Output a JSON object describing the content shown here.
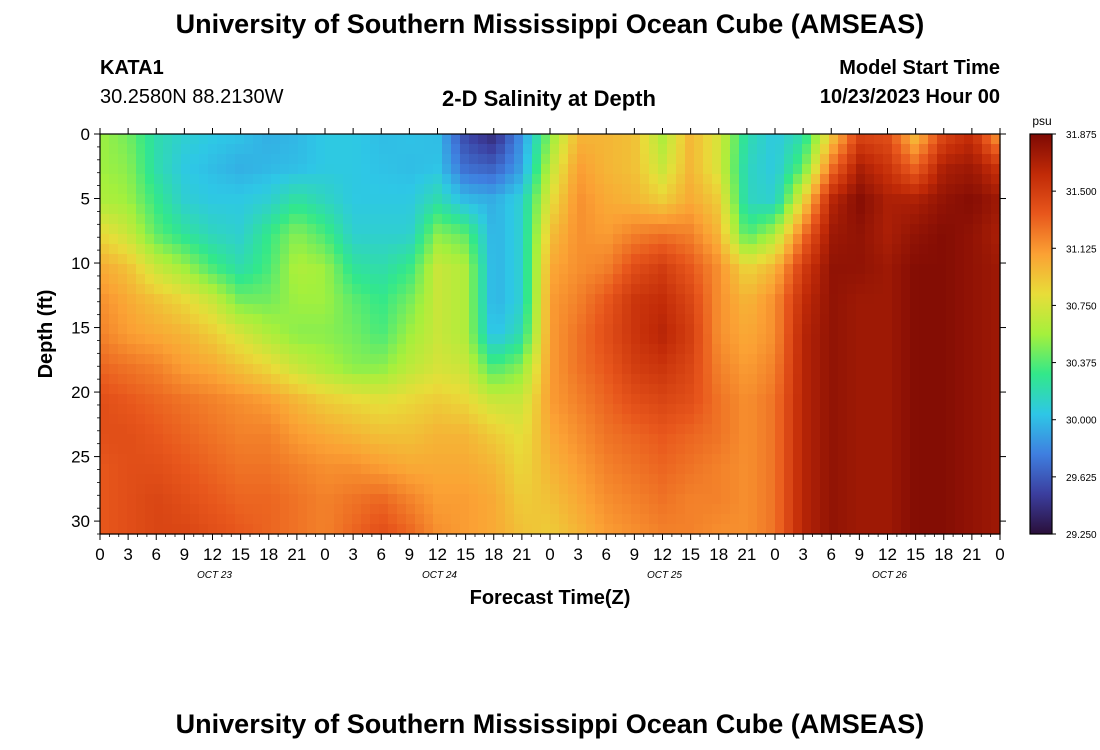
{
  "page": {
    "title": "University of Southern Mississippi Ocean Cube (AMSEAS)",
    "station": "KATA1",
    "coords": "30.2580N  88.2130W",
    "subtitle": "2-D Salinity at Depth",
    "model_label": "Model Start Time",
    "model_time": "10/23/2023 Hour 00",
    "footer_title": "University of Southern Mississippi Ocean Cube (AMSEAS)"
  },
  "chart_data": {
    "type": "heatmap",
    "title": "2-D Salinity at Depth",
    "xlabel": "Forecast Time(Z)",
    "ylabel": "Depth (ft)",
    "x_tick_labels": [
      "0",
      "3",
      "6",
      "9",
      "12",
      "15",
      "18",
      "21",
      "0",
      "3",
      "6",
      "9",
      "12",
      "15",
      "18",
      "21",
      "0",
      "3",
      "6",
      "9",
      "12",
      "15",
      "18",
      "21",
      "0",
      "3",
      "6",
      "9",
      "12",
      "15",
      "18",
      "21",
      "0"
    ],
    "day_labels": [
      "OCT 23",
      "OCT 24",
      "OCT 25",
      "OCT 26"
    ],
    "x_hours": [
      0,
      6,
      12,
      18,
      24,
      30,
      36,
      42,
      48,
      54,
      60,
      66,
      72,
      78,
      84,
      90,
      96
    ],
    "xlim": [
      0,
      96
    ],
    "y_depths_ft": [
      0,
      5,
      10,
      15,
      20,
      25,
      30
    ],
    "y_tick_labels": [
      "0",
      "5",
      "10",
      "15",
      "20",
      "25",
      "30"
    ],
    "ylim": [
      0,
      31
    ],
    "colorbar_unit": "psu",
    "colorbar_ticks": [
      "31.875",
      "31.500",
      "31.125",
      "30.750",
      "30.375",
      "30.000",
      "29.625",
      "29.250"
    ],
    "colorbar_range": [
      29.25,
      31.875
    ],
    "colorbar_colors": [
      "#2a0f3a",
      "#3b3e9e",
      "#3f7fe0",
      "#2ec7e6",
      "#32e88a",
      "#a5f03c",
      "#e8dd39",
      "#fba134",
      "#e8571c",
      "#c12a07",
      "#7e0a04"
    ],
    "salinity_psu": [
      [
        30.55,
        30.45,
        30.2,
        30.1,
        30.05,
        30.02,
        29.95,
        29.98,
        30.05,
        30.05,
        30.0,
        30.02,
        30.0,
        29.55,
        29.4,
        29.85,
        30.5,
        31.0,
        31.0,
        30.95,
        30.6,
        31.0,
        30.75,
        30.2,
        30.05,
        30.2,
        30.9,
        31.45,
        31.4,
        30.95,
        31.45,
        31.6,
        31.05
      ],
      [
        30.55,
        30.5,
        30.2,
        30.05,
        30.0,
        29.95,
        29.98,
        30.0,
        30.05,
        30.05,
        30.02,
        30.0,
        30.02,
        29.7,
        29.65,
        29.9,
        30.65,
        31.1,
        31.0,
        30.95,
        30.7,
        31.0,
        30.75,
        30.15,
        30.05,
        30.4,
        31.25,
        31.7,
        31.55,
        31.3,
        31.7,
        31.75,
        31.55
      ],
      [
        30.6,
        30.55,
        30.3,
        30.1,
        30.05,
        30.05,
        30.1,
        30.25,
        30.15,
        30.05,
        30.05,
        30.05,
        30.2,
        30.0,
        29.95,
        30.1,
        30.8,
        31.15,
        31.05,
        31.0,
        30.9,
        31.05,
        30.9,
        30.15,
        30.1,
        30.85,
        31.65,
        31.85,
        31.7,
        31.7,
        31.8,
        31.85,
        31.75
      ],
      [
        30.85,
        30.7,
        30.4,
        30.25,
        30.15,
        30.1,
        30.3,
        30.5,
        30.35,
        30.1,
        30.1,
        30.1,
        30.5,
        30.4,
        29.95,
        30.1,
        30.95,
        31.15,
        31.1,
        31.2,
        31.25,
        31.2,
        31.0,
        30.35,
        30.6,
        31.25,
        31.75,
        31.8,
        31.7,
        31.8,
        31.85,
        31.8,
        31.7
      ],
      [
        31.05,
        30.95,
        30.7,
        30.55,
        30.35,
        30.2,
        30.35,
        30.6,
        30.55,
        30.25,
        30.2,
        30.3,
        30.7,
        30.6,
        29.95,
        30.1,
        31.05,
        31.15,
        31.2,
        31.4,
        31.5,
        31.35,
        31.15,
        30.85,
        31.0,
        31.5,
        31.8,
        31.8,
        31.75,
        31.85,
        31.85,
        31.8,
        31.75
      ],
      [
        31.15,
        31.05,
        30.95,
        30.85,
        30.7,
        30.45,
        30.45,
        30.55,
        30.55,
        30.4,
        30.3,
        30.45,
        30.7,
        30.6,
        29.95,
        30.1,
        31.1,
        31.2,
        31.35,
        31.55,
        31.6,
        31.45,
        31.15,
        31.0,
        31.15,
        31.6,
        31.8,
        31.75,
        31.75,
        31.85,
        31.85,
        31.8,
        31.75
      ],
      [
        31.2,
        31.1,
        31.05,
        31.0,
        30.9,
        30.75,
        30.6,
        30.5,
        30.5,
        30.45,
        30.35,
        30.55,
        30.7,
        30.6,
        30.0,
        30.2,
        31.1,
        31.25,
        31.4,
        31.55,
        31.65,
        31.5,
        31.15,
        31.05,
        31.15,
        31.65,
        31.8,
        31.75,
        31.75,
        31.85,
        31.85,
        31.8,
        31.75
      ],
      [
        31.3,
        31.25,
        31.2,
        31.1,
        31.05,
        30.95,
        30.85,
        30.7,
        30.6,
        30.5,
        30.5,
        30.65,
        30.75,
        30.7,
        30.35,
        30.5,
        31.1,
        31.25,
        31.35,
        31.5,
        31.55,
        31.45,
        31.2,
        31.1,
        31.2,
        31.65,
        31.8,
        31.75,
        31.75,
        31.85,
        31.85,
        31.8,
        31.75
      ],
      [
        31.4,
        31.35,
        31.3,
        31.25,
        31.2,
        31.15,
        31.1,
        31.0,
        30.9,
        30.85,
        30.8,
        30.85,
        30.9,
        30.85,
        30.7,
        30.7,
        31.1,
        31.2,
        31.3,
        31.4,
        31.45,
        31.4,
        31.25,
        31.15,
        31.25,
        31.65,
        31.8,
        31.75,
        31.75,
        31.85,
        31.85,
        31.8,
        31.75
      ],
      [
        31.4,
        31.4,
        31.35,
        31.3,
        31.25,
        31.2,
        31.2,
        31.1,
        31.05,
        31.0,
        30.95,
        30.95,
        31.0,
        31.0,
        30.9,
        30.8,
        31.05,
        31.15,
        31.25,
        31.3,
        31.35,
        31.3,
        31.25,
        31.15,
        31.25,
        31.65,
        31.8,
        31.75,
        31.75,
        31.85,
        31.85,
        31.8,
        31.75
      ],
      [
        31.35,
        31.4,
        31.4,
        31.35,
        31.3,
        31.25,
        31.25,
        31.2,
        31.15,
        31.15,
        31.1,
        31.05,
        31.05,
        31.05,
        31.0,
        30.85,
        31.0,
        31.1,
        31.2,
        31.25,
        31.3,
        31.25,
        31.2,
        31.15,
        31.25,
        31.65,
        31.8,
        31.75,
        31.75,
        31.85,
        31.85,
        31.8,
        31.75
      ],
      [
        31.35,
        31.4,
        31.45,
        31.4,
        31.35,
        31.3,
        31.3,
        31.25,
        31.2,
        31.25,
        31.3,
        31.2,
        31.1,
        31.1,
        31.05,
        30.9,
        30.95,
        31.05,
        31.15,
        31.2,
        31.25,
        31.2,
        31.2,
        31.15,
        31.25,
        31.65,
        31.8,
        31.75,
        31.75,
        31.85,
        31.85,
        31.8,
        31.75
      ],
      [
        31.35,
        31.4,
        31.45,
        31.45,
        31.4,
        31.35,
        31.3,
        31.25,
        31.2,
        31.3,
        31.4,
        31.3,
        31.15,
        31.1,
        31.05,
        30.95,
        30.9,
        31.0,
        31.1,
        31.15,
        31.2,
        31.2,
        31.15,
        31.15,
        31.25,
        31.65,
        31.8,
        31.75,
        31.75,
        31.85,
        31.85,
        31.8,
        31.75
      ]
    ]
  }
}
